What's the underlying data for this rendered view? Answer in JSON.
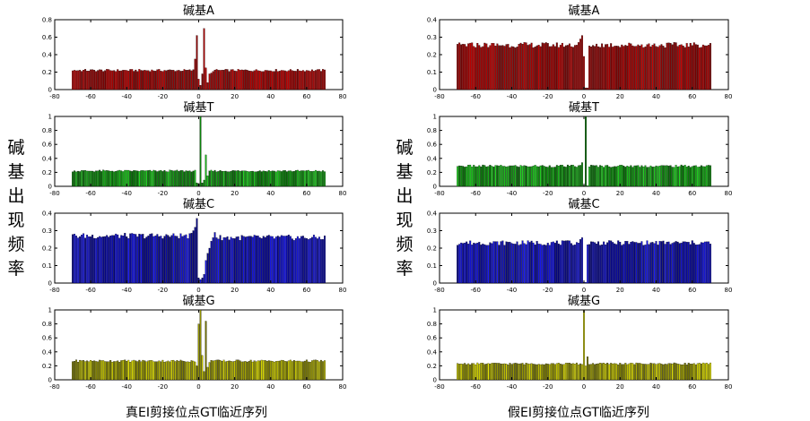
{
  "figure": {
    "left_ylabel": "碱基出现频率",
    "right_ylabel": "碱基出现频率",
    "left_caption": "真EI剪接位点GT临近序列",
    "right_caption": "假EI剪接位点GT临近序列"
  },
  "chart_data": [
    {
      "type": "bar",
      "panel": "left",
      "title": "碱基A",
      "xlim": [
        -80,
        80
      ],
      "ylim": [
        0,
        0.8
      ],
      "xticks": [
        -80,
        -60,
        -40,
        -20,
        0,
        20,
        40,
        60,
        80
      ],
      "yticks": [
        0,
        0.2,
        0.4,
        0.6,
        0.8
      ],
      "x_range": [
        -70,
        70
      ],
      "baseline": 0.22,
      "special": [
        {
          "x": -2,
          "y": 0.35
        },
        {
          "x": -1,
          "y": 0.62
        },
        {
          "x": 0,
          "y": 0.12
        },
        {
          "x": 1,
          "y": 0.05
        },
        {
          "x": 2,
          "y": 0.18
        },
        {
          "x": 3,
          "y": 0.7
        },
        {
          "x": 4,
          "y": 0.25
        },
        {
          "x": 5,
          "y": 0.08
        },
        {
          "x": 6,
          "y": 0.18
        },
        {
          "x": 7,
          "y": 0.19
        }
      ],
      "colors": [
        "#7a0000",
        "#cc0000"
      ]
    },
    {
      "type": "bar",
      "panel": "left",
      "title": "碱基T",
      "xlim": [
        -80,
        80
      ],
      "ylim": [
        0,
        1
      ],
      "xticks": [
        -80,
        -60,
        -40,
        -20,
        0,
        20,
        40,
        60,
        80
      ],
      "yticks": [
        0,
        0.2,
        0.4,
        0.6,
        0.8,
        1
      ],
      "x_range": [
        -70,
        70
      ],
      "baseline": 0.22,
      "special": [
        {
          "x": -1,
          "y": 0.05
        },
        {
          "x": 0,
          "y": 0.04
        },
        {
          "x": 1,
          "y": 1.0
        },
        {
          "x": 2,
          "y": 0.05
        },
        {
          "x": 3,
          "y": 0.09
        },
        {
          "x": 4,
          "y": 0.45
        },
        {
          "x": 5,
          "y": 0.15
        },
        {
          "x": 6,
          "y": 0.22
        }
      ],
      "colors": [
        "#006400",
        "#22dd22"
      ]
    },
    {
      "type": "bar",
      "panel": "left",
      "title": "碱基C",
      "xlim": [
        -80,
        80
      ],
      "ylim": [
        0,
        0.4
      ],
      "xticks": [
        -80,
        -60,
        -40,
        -20,
        0,
        20,
        40,
        60,
        80
      ],
      "yticks": [
        0,
        0.1,
        0.2,
        0.3,
        0.4
      ],
      "x_range": [
        -70,
        70
      ],
      "baseline": 0.27,
      "special": [
        {
          "x": -3,
          "y": 0.3
        },
        {
          "x": -2,
          "y": 0.32
        },
        {
          "x": -1,
          "y": 0.37
        },
        {
          "x": 0,
          "y": 0.03
        },
        {
          "x": 1,
          "y": 0.02
        },
        {
          "x": 2,
          "y": 0.03
        },
        {
          "x": 3,
          "y": 0.05
        },
        {
          "x": 4,
          "y": 0.13
        },
        {
          "x": 5,
          "y": 0.17
        },
        {
          "x": 6,
          "y": 0.2
        },
        {
          "x": 7,
          "y": 0.24
        },
        {
          "x": 8,
          "y": 0.26
        },
        {
          "x": 9,
          "y": 0.29
        }
      ],
      "colors": [
        "#00007a",
        "#1a1aff"
      ]
    },
    {
      "type": "bar",
      "panel": "left",
      "title": "碱基G",
      "xlim": [
        -80,
        80
      ],
      "ylim": [
        0,
        1
      ],
      "xticks": [
        -80,
        -60,
        -40,
        -20,
        0,
        20,
        40,
        60,
        80
      ],
      "yticks": [
        0,
        0.2,
        0.4,
        0.6,
        0.8,
        1
      ],
      "x_range": [
        -70,
        70
      ],
      "baseline": 0.27,
      "special": [
        {
          "x": -1,
          "y": 0.2
        },
        {
          "x": 0,
          "y": 0.8
        },
        {
          "x": 1,
          "y": 1.0
        },
        {
          "x": 2,
          "y": 0.35
        },
        {
          "x": 3,
          "y": 0.12
        },
        {
          "x": 4,
          "y": 0.84
        },
        {
          "x": 5,
          "y": 0.18
        },
        {
          "x": 6,
          "y": 0.25
        },
        {
          "x": 7,
          "y": 0.28
        }
      ],
      "colors": [
        "#6b6b00",
        "#e8e800"
      ]
    },
    {
      "type": "bar",
      "panel": "right",
      "title": "碱基A",
      "xlim": [
        -80,
        80
      ],
      "ylim": [
        0,
        0.4
      ],
      "xticks": [
        -80,
        -60,
        -40,
        -20,
        0,
        20,
        40,
        60,
        80
      ],
      "yticks": [
        0,
        0.1,
        0.2,
        0.3,
        0.4
      ],
      "x_range": [
        -70,
        70
      ],
      "baseline": 0.255,
      "special": [
        {
          "x": -3,
          "y": 0.27
        },
        {
          "x": -2,
          "y": 0.29
        },
        {
          "x": -1,
          "y": 0.31
        },
        {
          "x": 0,
          "y": 0.19
        },
        {
          "x": 1,
          "y": 0.01
        },
        {
          "x": 2,
          "y": 0.01
        },
        {
          "x": 3,
          "y": 0.25
        }
      ],
      "colors": [
        "#7a0000",
        "#cc0000"
      ]
    },
    {
      "type": "bar",
      "panel": "right",
      "title": "碱基T",
      "xlim": [
        -80,
        80
      ],
      "ylim": [
        0,
        1
      ],
      "xticks": [
        -80,
        -60,
        -40,
        -20,
        0,
        20,
        40,
        60,
        80
      ],
      "yticks": [
        0,
        0.2,
        0.4,
        0.6,
        0.8,
        1
      ],
      "x_range": [
        -70,
        70
      ],
      "baseline": 0.29,
      "special": [
        {
          "x": -1,
          "y": 0.34
        },
        {
          "x": 0,
          "y": 0.01
        },
        {
          "x": 1,
          "y": 1.0
        },
        {
          "x": 2,
          "y": 0.01
        },
        {
          "x": 3,
          "y": 0.28
        }
      ],
      "colors": [
        "#006400",
        "#22dd22"
      ]
    },
    {
      "type": "bar",
      "panel": "right",
      "title": "碱基C",
      "xlim": [
        -80,
        80
      ],
      "ylim": [
        0,
        0.4
      ],
      "xticks": [
        -80,
        -60,
        -40,
        -20,
        0,
        20,
        40,
        60,
        80
      ],
      "yticks": [
        0,
        0.1,
        0.2,
        0.3,
        0.4
      ],
      "x_range": [
        -70,
        70
      ],
      "baseline": 0.23,
      "special": [
        {
          "x": -2,
          "y": 0.25
        },
        {
          "x": -1,
          "y": 0.26
        },
        {
          "x": 0,
          "y": 0.005
        },
        {
          "x": 1,
          "y": 0.005
        },
        {
          "x": 2,
          "y": 0.22
        }
      ],
      "colors": [
        "#00007a",
        "#1a1aff"
      ]
    },
    {
      "type": "bar",
      "panel": "right",
      "title": "碱基G",
      "xlim": [
        -80,
        80
      ],
      "ylim": [
        0,
        1
      ],
      "xticks": [
        -80,
        -60,
        -40,
        -20,
        0,
        20,
        40,
        60,
        80
      ],
      "yticks": [
        0,
        0.2,
        0.4,
        0.6,
        0.8,
        1
      ],
      "x_range": [
        -70,
        70
      ],
      "baseline": 0.23,
      "special": [
        {
          "x": -1,
          "y": 0.22
        },
        {
          "x": 0,
          "y": 1.0
        },
        {
          "x": 1,
          "y": 0.2
        },
        {
          "x": 2,
          "y": 0.33
        },
        {
          "x": 3,
          "y": 0.22
        }
      ],
      "colors": [
        "#6b6b00",
        "#e8e800"
      ]
    }
  ]
}
